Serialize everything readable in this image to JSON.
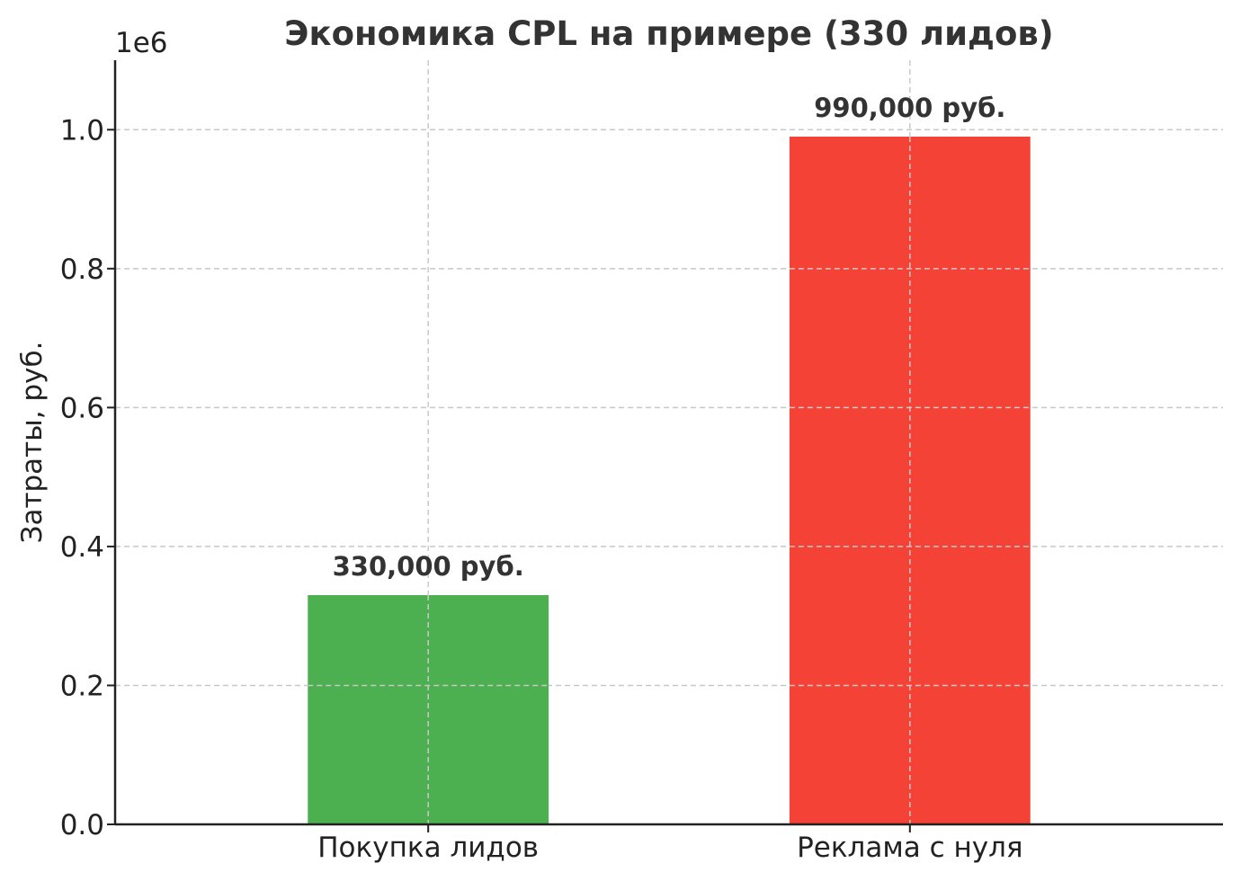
{
  "chart_data": {
    "type": "bar",
    "title": "Экономика CPL на примере (330 лидов)",
    "xlabel": "",
    "ylabel": "Затраты, руб.",
    "y_offset_label": "1e6",
    "categories": [
      "Покупка лидов",
      "Реклама с нуля"
    ],
    "values": [
      330000,
      990000
    ],
    "data_labels": [
      "330,000 руб.",
      "990,000 руб."
    ],
    "colors": [
      "#4caf50",
      "#f44336"
    ],
    "ylim": [
      0,
      1100000
    ],
    "yticks": [
      0,
      200000,
      400000,
      600000,
      800000,
      1000000
    ],
    "ytick_labels": [
      "0.0",
      "0.2",
      "0.4",
      "0.6",
      "0.8",
      "1.0"
    ],
    "grid": true,
    "legend": "none"
  }
}
